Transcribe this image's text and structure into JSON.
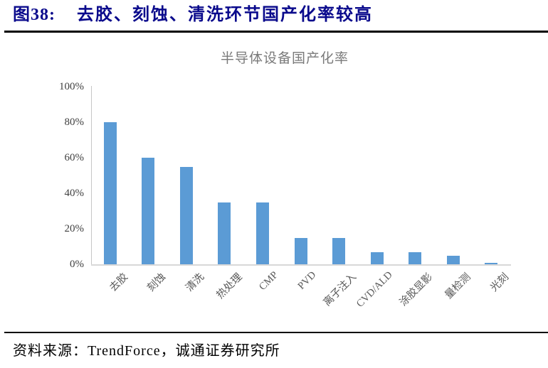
{
  "header": {
    "figure_label": "图38:",
    "figure_title": "去胶、刻蚀、清洗环节国产化率较高",
    "text_color": "#0a0a8c"
  },
  "chart_data": {
    "type": "bar",
    "title": "半导体设备国产化率",
    "categories": [
      "去胶",
      "刻蚀",
      "清洗",
      "热处理",
      "CMP",
      "PVD",
      "离子注入",
      "CVD/ALD",
      "涂胶显影",
      "量检测",
      "光刻"
    ],
    "values": [
      80,
      60,
      55,
      35,
      35,
      15,
      15,
      7,
      7,
      5,
      1
    ],
    "unit": "%",
    "xlabel": "",
    "ylabel": "",
    "ylim": [
      0,
      100
    ],
    "ytick_values": [
      0,
      20,
      40,
      60,
      80,
      100
    ],
    "ytick_labels": [
      "0%",
      "20%",
      "40%",
      "60%",
      "80%",
      "100%"
    ],
    "grid": false,
    "legend": false,
    "bar_color": "#5B9BD5",
    "title_color": "#7a7a7a",
    "ytick_color": "#3f3f3f",
    "xtick_color": "#595959",
    "axis_line_color": "#c6c6c6"
  },
  "footer": {
    "source_text": "资料来源：TrendForce，诚通证券研究所"
  }
}
